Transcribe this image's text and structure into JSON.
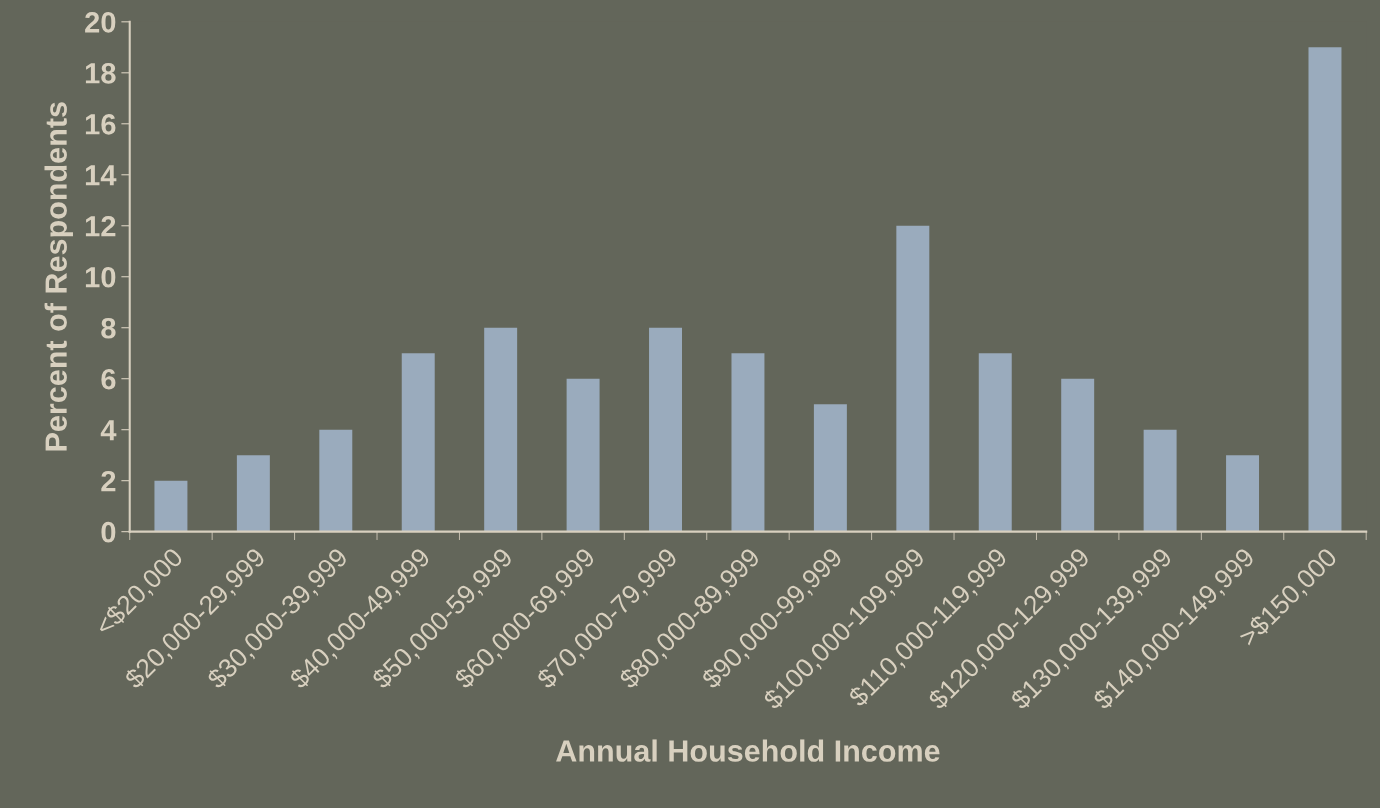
{
  "chart_data": {
    "type": "bar",
    "xlabel": "Annual Household Income",
    "ylabel": "Percent of Respondents",
    "categories": [
      "<$20,000",
      "$20,000-29,999",
      "$30,000-39,999",
      "$40,000-49,999",
      "$50,000-59,999",
      "$60,000-69,999",
      "$70,000-79,999",
      "$80,000-89,999",
      "$90,000-99,999",
      "$100,000-109,999",
      "$110,000-119,999",
      "$120,000-129,999",
      "$130,000-139,999",
      "$140,000-149,999",
      ">$150,000"
    ],
    "values": [
      2,
      3,
      4,
      7,
      8,
      6,
      8,
      7,
      5,
      12,
      7,
      6,
      4,
      3,
      19
    ],
    "color": "#9aabbd",
    "ylim": [
      0,
      20
    ],
    "yticks": [
      0,
      2,
      4,
      6,
      8,
      10,
      12,
      14,
      16,
      18,
      20
    ],
    "grid": false,
    "legend": false
  }
}
